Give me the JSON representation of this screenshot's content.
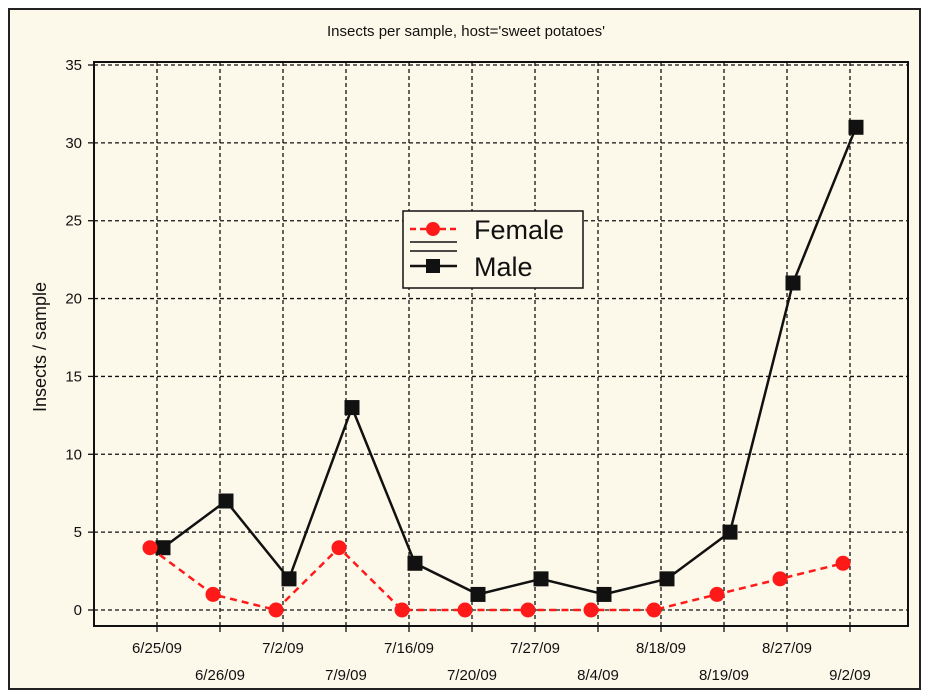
{
  "chart_data": {
    "type": "line",
    "title": "Insects per sample, host='sweet potatoes'",
    "xlabel": "",
    "ylabel": "Insects / sample",
    "ylim": [
      0,
      35
    ],
    "yticks": [
      0,
      5,
      10,
      15,
      20,
      25,
      30,
      35
    ],
    "grid": true,
    "legend_position": "center",
    "categories": [
      "6/25/09",
      "6/26/09",
      "7/2/09",
      "7/9/09",
      "7/16/09",
      "7/20/09",
      "7/27/09",
      "8/4/09",
      "8/18/09",
      "8/19/09",
      "8/27/09",
      "9/2/09"
    ],
    "series": [
      {
        "name": "Female",
        "color": "#ff1a1a",
        "marker": "circle",
        "line_style": "dashed",
        "values": [
          4,
          1,
          0,
          4,
          0,
          0,
          0,
          0,
          0,
          1,
          2,
          3
        ]
      },
      {
        "name": "Male",
        "color": "#111111",
        "marker": "square",
        "line_style": "solid",
        "values": [
          4,
          7,
          2,
          13,
          3,
          1,
          2,
          1,
          2,
          5,
          21,
          31
        ]
      }
    ]
  }
}
